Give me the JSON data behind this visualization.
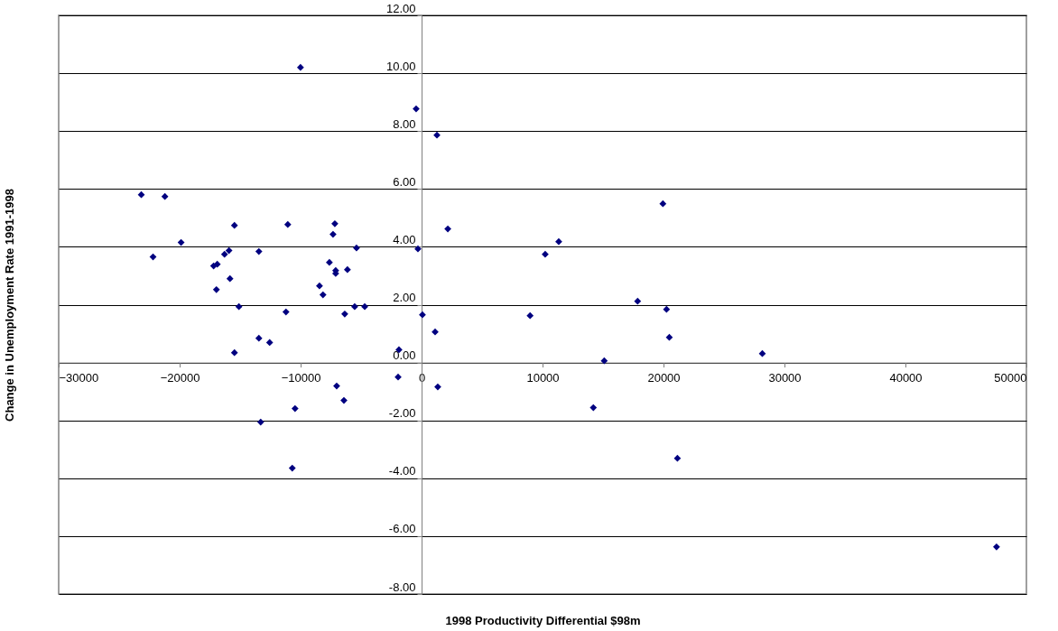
{
  "chart_data": {
    "type": "scatter",
    "xlabel": "1998 Productivity Differential $98m",
    "ylabel": "Change in Unemployment Rate 1991-1998",
    "x": [
      -23170,
      -21220,
      -22200,
      -19880,
      -17190,
      -16890,
      -16960,
      -16290,
      -15920,
      -15840,
      -15470,
      -15100,
      -15470,
      -13450,
      -13450,
      -12560,
      -13300,
      -11210,
      -11060,
      -10460,
      -10690,
      -10010,
      -8440,
      -8150,
      -7620,
      -7320,
      -7170,
      -7100,
      -7100,
      -7020,
      -6350,
      -6420,
      -6130,
      -5530,
      -5380,
      -4700,
      -1940,
      -1870,
      -450,
      -300,
      70,
      1120,
      1270,
      1340,
      2170,
      8970,
      10220,
      11340,
      14200,
      15100,
      17860,
      19950,
      20250,
      20480,
      21150,
      28170,
      47530
    ],
    "series": [
      {
        "color": "#000080",
        "values": [
          5.8,
          5.74,
          3.65,
          4.15,
          3.34,
          3.4,
          2.52,
          3.74,
          3.87,
          2.9,
          4.74,
          1.93,
          0.34,
          3.84,
          0.84,
          0.69,
          -2.06,
          1.75,
          4.77,
          -1.59,
          -3.65,
          10.2,
          2.65,
          2.34,
          3.46,
          4.43,
          4.8,
          3.18,
          3.08,
          -0.81,
          1.68,
          -1.31,
          3.21,
          1.93,
          3.96,
          1.93,
          -0.5,
          0.44,
          8.77,
          3.93,
          1.65,
          1.06,
          7.86,
          -0.84,
          4.62,
          1.62,
          3.74,
          4.18,
          -1.56,
          0.06,
          2.12,
          5.49,
          1.84,
          0.87,
          -3.31,
          0.31,
          -6.37
        ]
      }
    ],
    "xlim": [
      -30000,
      50000
    ],
    "xticks": [
      -30000,
      -20000,
      -10000,
      0,
      10000,
      20000,
      30000,
      40000,
      50000
    ],
    "ylim": [
      -8,
      12
    ],
    "yticks": [
      {
        "value": -8,
        "label": "-8.00"
      },
      {
        "value": -6,
        "label": "-6.00"
      },
      {
        "value": -4,
        "label": "-4.00"
      },
      {
        "value": -2,
        "label": "-2.00"
      },
      {
        "value": 0,
        "label": "0.00"
      },
      {
        "value": 2,
        "label": "2.00"
      },
      {
        "value": 4,
        "label": "4.00"
      },
      {
        "value": 6,
        "label": "6.00"
      },
      {
        "value": 8,
        "label": "8.00"
      },
      {
        "value": 10,
        "label": "10.00"
      },
      {
        "value": 12,
        "label": "12.00"
      }
    ],
    "grid": "y",
    "marker": "diamond"
  }
}
